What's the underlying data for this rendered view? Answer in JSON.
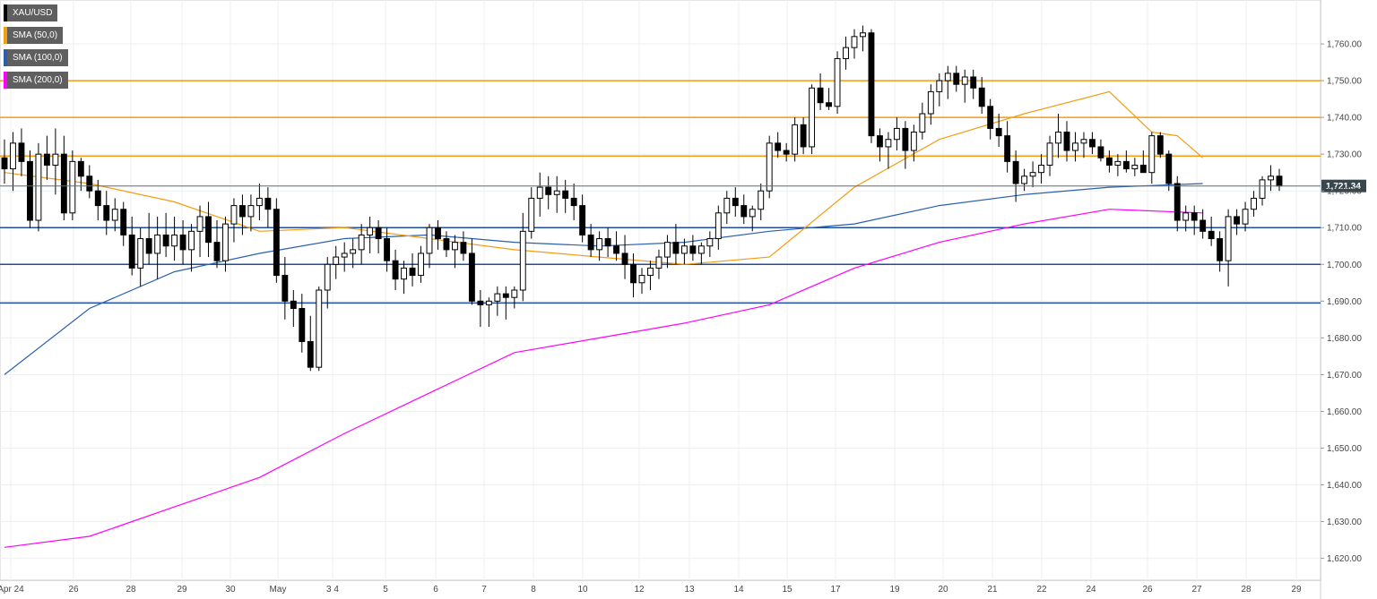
{
  "chart_data": {
    "type": "candlestick",
    "symbol": "XAU/USD",
    "legend": [
      {
        "label": "XAU/USD",
        "color": "#000000"
      },
      {
        "label": "SMA (50,0)",
        "color": "#f39c12"
      },
      {
        "label": "SMA (100,0)",
        "color": "#2a5fb0"
      },
      {
        "label": "SMA (200,0)",
        "color": "#ff00ff"
      }
    ],
    "ylim": [
      1616,
      1770
    ],
    "y_ticks": [
      1620,
      1630,
      1640,
      1650,
      1660,
      1670,
      1680,
      1690,
      1700,
      1710,
      1720,
      1730,
      1740,
      1750,
      1760
    ],
    "y_tick_labels": [
      "1,620.00",
      "1,630.00",
      "1,640.00",
      "1,650.00",
      "1,660.00",
      "1,670.00",
      "1,680.00",
      "1,690.00",
      "1,700.00",
      "1,710.00",
      "1,720.00",
      "1,730.00",
      "1,740.00",
      "1,750.00",
      "1,760.00"
    ],
    "x_labels": [
      "Apr 24",
      "26",
      "28",
      "29",
      "30",
      "May",
      "3 4",
      "5",
      "6",
      "7",
      "8",
      "10",
      "12",
      "13",
      "14",
      "15",
      "17",
      "19",
      "20",
      "21",
      "22",
      "24",
      "26",
      "27",
      "28",
      "29"
    ],
    "current_price": 1721.34,
    "current_price_label": "1,721.34",
    "resistance_levels": [
      1750,
      1740,
      1729.5
    ],
    "support_levels": [
      1710,
      1700,
      1689.5
    ],
    "colors": {
      "up": "#ffffff",
      "down": "#000000",
      "resistance": "#f39c12",
      "support": "#1f4e9c",
      "sma50": "#f39c12",
      "sma100": "#2a5fb0",
      "sma200": "#ff00ff"
    },
    "candles": [
      [
        1729,
        1734,
        1722,
        1726
      ],
      [
        1726,
        1736,
        1720,
        1733
      ],
      [
        1733,
        1737,
        1724,
        1728
      ],
      [
        1728,
        1731,
        1710,
        1712
      ],
      [
        1712,
        1733,
        1709,
        1730
      ],
      [
        1730,
        1735,
        1723,
        1727
      ],
      [
        1727,
        1737,
        1719,
        1730
      ],
      [
        1730,
        1735,
        1712,
        1714
      ],
      [
        1714,
        1731,
        1712,
        1728
      ],
      [
        1728,
        1729,
        1720,
        1724
      ],
      [
        1724,
        1727,
        1718,
        1720
      ],
      [
        1720,
        1723,
        1712,
        1716
      ],
      [
        1716,
        1720,
        1708,
        1712
      ],
      [
        1712,
        1718,
        1709,
        1715
      ],
      [
        1715,
        1717,
        1705,
        1708
      ],
      [
        1708,
        1713,
        1697,
        1699
      ],
      [
        1699,
        1710,
        1694,
        1707
      ],
      [
        1707,
        1714,
        1700,
        1703
      ],
      [
        1703,
        1713,
        1696,
        1708
      ],
      [
        1708,
        1714,
        1702,
        1705
      ],
      [
        1705,
        1713,
        1701,
        1708
      ],
      [
        1708,
        1712,
        1700,
        1704
      ],
      [
        1704,
        1711,
        1698,
        1709
      ],
      [
        1709,
        1716,
        1702,
        1713
      ],
      [
        1713,
        1717,
        1702,
        1706
      ],
      [
        1706,
        1712,
        1699,
        1701
      ],
      [
        1701,
        1713,
        1698,
        1711
      ],
      [
        1711,
        1718,
        1706,
        1716
      ],
      [
        1716,
        1719,
        1708,
        1713
      ],
      [
        1713,
        1719,
        1709,
        1716
      ],
      [
        1716,
        1722,
        1712,
        1718
      ],
      [
        1718,
        1721,
        1710,
        1715
      ],
      [
        1715,
        1718,
        1695,
        1697
      ],
      [
        1697,
        1702,
        1685,
        1690
      ],
      [
        1690,
        1693,
        1683,
        1688
      ],
      [
        1688,
        1692,
        1676,
        1679
      ],
      [
        1679,
        1686,
        1671,
        1672
      ],
      [
        1672,
        1694,
        1671,
        1693
      ],
      [
        1693,
        1702,
        1688,
        1700
      ],
      [
        1700,
        1705,
        1696,
        1702
      ],
      [
        1702,
        1706,
        1698,
        1703
      ],
      [
        1703,
        1707,
        1699,
        1704
      ],
      [
        1704,
        1711,
        1700,
        1708
      ],
      [
        1708,
        1713,
        1703,
        1710
      ],
      [
        1710,
        1712,
        1703,
        1707
      ],
      [
        1707,
        1710,
        1698,
        1701
      ],
      [
        1701,
        1704,
        1693,
        1696
      ],
      [
        1696,
        1701,
        1692,
        1699
      ],
      [
        1699,
        1703,
        1694,
        1697
      ],
      [
        1697,
        1705,
        1695,
        1703
      ],
      [
        1703,
        1711,
        1699,
        1710
      ],
      [
        1710,
        1712,
        1704,
        1707
      ],
      [
        1707,
        1709,
        1702,
        1704
      ],
      [
        1704,
        1708,
        1699,
        1706
      ],
      [
        1706,
        1709,
        1701,
        1703
      ],
      [
        1703,
        1707,
        1689,
        1690
      ],
      [
        1690,
        1693,
        1683,
        1689
      ],
      [
        1689,
        1691,
        1683,
        1690
      ],
      [
        1690,
        1694,
        1686,
        1692
      ],
      [
        1692,
        1694,
        1685,
        1691
      ],
      [
        1691,
        1694,
        1688,
        1693
      ],
      [
        1693,
        1714,
        1690,
        1709
      ],
      [
        1709,
        1721,
        1707,
        1718
      ],
      [
        1718,
        1725,
        1713,
        1721
      ],
      [
        1721,
        1724,
        1715,
        1719
      ],
      [
        1719,
        1724,
        1714,
        1720
      ],
      [
        1720,
        1723,
        1714,
        1718
      ],
      [
        1718,
        1722,
        1712,
        1716
      ],
      [
        1716,
        1719,
        1706,
        1708
      ],
      [
        1708,
        1711,
        1702,
        1704
      ],
      [
        1704,
        1709,
        1701,
        1707
      ],
      [
        1707,
        1710,
        1702,
        1705
      ],
      [
        1705,
        1709,
        1701,
        1703
      ],
      [
        1703,
        1708,
        1696,
        1700
      ],
      [
        1700,
        1703,
        1691,
        1695
      ],
      [
        1695,
        1699,
        1692,
        1697
      ],
      [
        1697,
        1701,
        1693,
        1699
      ],
      [
        1699,
        1704,
        1696,
        1702
      ],
      [
        1702,
        1708,
        1699,
        1706
      ],
      [
        1706,
        1711,
        1700,
        1703
      ],
      [
        1703,
        1707,
        1700,
        1705
      ],
      [
        1705,
        1708,
        1701,
        1703
      ],
      [
        1703,
        1706,
        1700,
        1705
      ],
      [
        1705,
        1709,
        1702,
        1707
      ],
      [
        1707,
        1716,
        1704,
        1714
      ],
      [
        1714,
        1720,
        1711,
        1718
      ],
      [
        1718,
        1721,
        1713,
        1716
      ],
      [
        1716,
        1719,
        1711,
        1713
      ],
      [
        1713,
        1716,
        1709,
        1715
      ],
      [
        1715,
        1722,
        1712,
        1720
      ],
      [
        1720,
        1735,
        1718,
        1733
      ],
      [
        1733,
        1736,
        1729,
        1731
      ],
      [
        1731,
        1733,
        1728,
        1730
      ],
      [
        1730,
        1740,
        1728,
        1738
      ],
      [
        1738,
        1740,
        1730,
        1732
      ],
      [
        1732,
        1749,
        1730,
        1748
      ],
      [
        1748,
        1752,
        1742,
        1744
      ],
      [
        1744,
        1748,
        1742,
        1743
      ],
      [
        1743,
        1758,
        1741,
        1756
      ],
      [
        1756,
        1762,
        1753,
        1759
      ],
      [
        1759,
        1764,
        1756,
        1762
      ],
      [
        1762,
        1765,
        1758,
        1763
      ],
      [
        1763,
        1764,
        1733,
        1735
      ],
      [
        1735,
        1737,
        1728,
        1732
      ],
      [
        1732,
        1736,
        1726,
        1734
      ],
      [
        1734,
        1740,
        1731,
        1737
      ],
      [
        1737,
        1739,
        1726,
        1731
      ],
      [
        1731,
        1738,
        1728,
        1736
      ],
      [
        1736,
        1744,
        1734,
        1741
      ],
      [
        1741,
        1749,
        1738,
        1747
      ],
      [
        1747,
        1752,
        1743,
        1750
      ],
      [
        1750,
        1754,
        1745,
        1752
      ],
      [
        1752,
        1754,
        1747,
        1749
      ],
      [
        1749,
        1753,
        1744,
        1751
      ],
      [
        1751,
        1753,
        1745,
        1748
      ],
      [
        1748,
        1751,
        1741,
        1743
      ],
      [
        1743,
        1745,
        1734,
        1737
      ],
      [
        1737,
        1741,
        1732,
        1735
      ],
      [
        1735,
        1739,
        1725,
        1728
      ],
      [
        1728,
        1731,
        1717,
        1722
      ],
      [
        1722,
        1726,
        1720,
        1724
      ],
      [
        1724,
        1728,
        1721,
        1725
      ],
      [
        1725,
        1730,
        1722,
        1727
      ],
      [
        1727,
        1735,
        1724,
        1733
      ],
      [
        1733,
        1741,
        1729,
        1736
      ],
      [
        1736,
        1739,
        1728,
        1731
      ],
      [
        1731,
        1736,
        1728,
        1733
      ],
      [
        1733,
        1736,
        1729,
        1734
      ],
      [
        1734,
        1736,
        1730,
        1732
      ],
      [
        1732,
        1734,
        1728,
        1729
      ],
      [
        1729,
        1731,
        1725,
        1727
      ],
      [
        1727,
        1730,
        1724,
        1728
      ],
      [
        1728,
        1731,
        1725,
        1726
      ],
      [
        1726,
        1729,
        1724,
        1727
      ],
      [
        1727,
        1731,
        1725,
        1725
      ],
      [
        1725,
        1736,
        1722,
        1735
      ],
      [
        1735,
        1736,
        1729,
        1730
      ],
      [
        1730,
        1731,
        1720,
        1722
      ],
      [
        1722,
        1724,
        1709,
        1712
      ],
      [
        1712,
        1716,
        1709,
        1714
      ],
      [
        1714,
        1716,
        1708,
        1712
      ],
      [
        1712,
        1715,
        1707,
        1709
      ],
      [
        1709,
        1713,
        1705,
        1707
      ],
      [
        1707,
        1709,
        1698,
        1701
      ],
      [
        1701,
        1715,
        1694,
        1713
      ],
      [
        1713,
        1715,
        1708,
        1711
      ],
      [
        1711,
        1717,
        1709,
        1715
      ],
      [
        1715,
        1720,
        1713,
        1718
      ],
      [
        1718,
        1724,
        1716,
        1723
      ],
      [
        1723,
        1727,
        1720,
        1724
      ],
      [
        1724,
        1726,
        1720,
        1721.34
      ]
    ],
    "sma50": [
      [
        0,
        1725
      ],
      [
        10,
        1722
      ],
      [
        20,
        1717
      ],
      [
        30,
        1709
      ],
      [
        40,
        1710
      ],
      [
        50,
        1707
      ],
      [
        60,
        1704
      ],
      [
        70,
        1702
      ],
      [
        80,
        1700
      ],
      [
        90,
        1702
      ],
      [
        100,
        1721
      ],
      [
        110,
        1734
      ],
      [
        120,
        1741
      ],
      [
        130,
        1747
      ],
      [
        135,
        1736
      ],
      [
        138,
        1735
      ],
      [
        141,
        1729
      ]
    ],
    "sma100": [
      [
        0,
        1670
      ],
      [
        10,
        1688
      ],
      [
        20,
        1698
      ],
      [
        30,
        1703
      ],
      [
        40,
        1707
      ],
      [
        50,
        1708
      ],
      [
        60,
        1706
      ],
      [
        70,
        1705
      ],
      [
        80,
        1706
      ],
      [
        90,
        1709
      ],
      [
        100,
        1711
      ],
      [
        110,
        1716
      ],
      [
        120,
        1719
      ],
      [
        130,
        1721
      ],
      [
        141,
        1722
      ]
    ],
    "sma200": [
      [
        0,
        1623
      ],
      [
        10,
        1626
      ],
      [
        20,
        1634
      ],
      [
        30,
        1642
      ],
      [
        40,
        1654
      ],
      [
        50,
        1665
      ],
      [
        60,
        1676
      ],
      [
        70,
        1680
      ],
      [
        80,
        1684
      ],
      [
        90,
        1689
      ],
      [
        100,
        1699
      ],
      [
        110,
        1706
      ],
      [
        120,
        1711
      ],
      [
        130,
        1715
      ],
      [
        141,
        1714
      ]
    ]
  }
}
